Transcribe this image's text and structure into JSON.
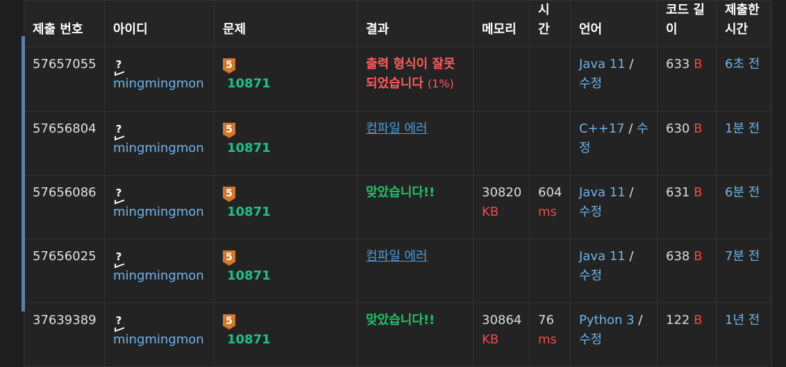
{
  "columns": [
    "제출 번호",
    "아이디",
    "문제",
    "결과",
    "메모리",
    "시\n간",
    "언어",
    "코드 길\n이",
    "제출한\n시간"
  ],
  "rows": [
    {
      "submission_id": "57657055",
      "user": "mingmingmon",
      "user_badge": "?",
      "problem_tier": "5",
      "problem_id": "10871",
      "result_type": "wrong",
      "result_text": "출력 형식이 잘못되었습니다",
      "result_pct": "(1%)",
      "memory": "",
      "memory_unit": "",
      "time": "",
      "time_unit": "",
      "language": "Java 11",
      "edit_label": "수정",
      "code_length": "633",
      "code_unit": "B",
      "submitted": "6초 전"
    },
    {
      "submission_id": "57656804",
      "user": "mingmingmon",
      "user_badge": "?",
      "problem_tier": "5",
      "problem_id": "10871",
      "result_type": "ce",
      "result_text": "컴파일 에러",
      "result_pct": "",
      "memory": "",
      "memory_unit": "",
      "time": "",
      "time_unit": "",
      "language": "C++17",
      "edit_label": "수정",
      "code_length": "630",
      "code_unit": "B",
      "submitted": "1분 전"
    },
    {
      "submission_id": "57656086",
      "user": "mingmingmon",
      "user_badge": "?",
      "problem_tier": "5",
      "problem_id": "10871",
      "result_type": "ac",
      "result_text": "맞았습니다!!",
      "result_pct": "",
      "memory": "30820",
      "memory_unit": "KB",
      "time": "604",
      "time_unit": "ms",
      "language": "Java 11",
      "edit_label": "수정",
      "code_length": "631",
      "code_unit": "B",
      "submitted": "6분 전"
    },
    {
      "submission_id": "57656025",
      "user": "mingmingmon",
      "user_badge": "?",
      "problem_tier": "5",
      "problem_id": "10871",
      "result_type": "ce",
      "result_text": "컴파일 에러",
      "result_pct": "",
      "memory": "",
      "memory_unit": "",
      "time": "",
      "time_unit": "",
      "language": "Java 11",
      "edit_label": "수정",
      "code_length": "638",
      "code_unit": "B",
      "submitted": "7분 전"
    },
    {
      "submission_id": "37639389",
      "user": "mingmingmon",
      "user_badge": "?",
      "problem_tier": "5",
      "problem_id": "10871",
      "result_type": "ac",
      "result_text": "맞았습니다!!",
      "result_pct": "",
      "memory": "30864",
      "memory_unit": "KB",
      "time": "76",
      "time_unit": "ms",
      "language": "Python 3",
      "edit_label": "수정",
      "code_length": "122",
      "code_unit": "B",
      "submitted": "1년 전"
    }
  ],
  "colors": {
    "accent_strip": "#5a7fa8",
    "link_blue": "#6fb3e8",
    "accepted_green": "#22c36b",
    "wrong_red": "#ff5c5c",
    "tier_bronze": "#d4762b",
    "problem_green": "#1fbf8f"
  }
}
